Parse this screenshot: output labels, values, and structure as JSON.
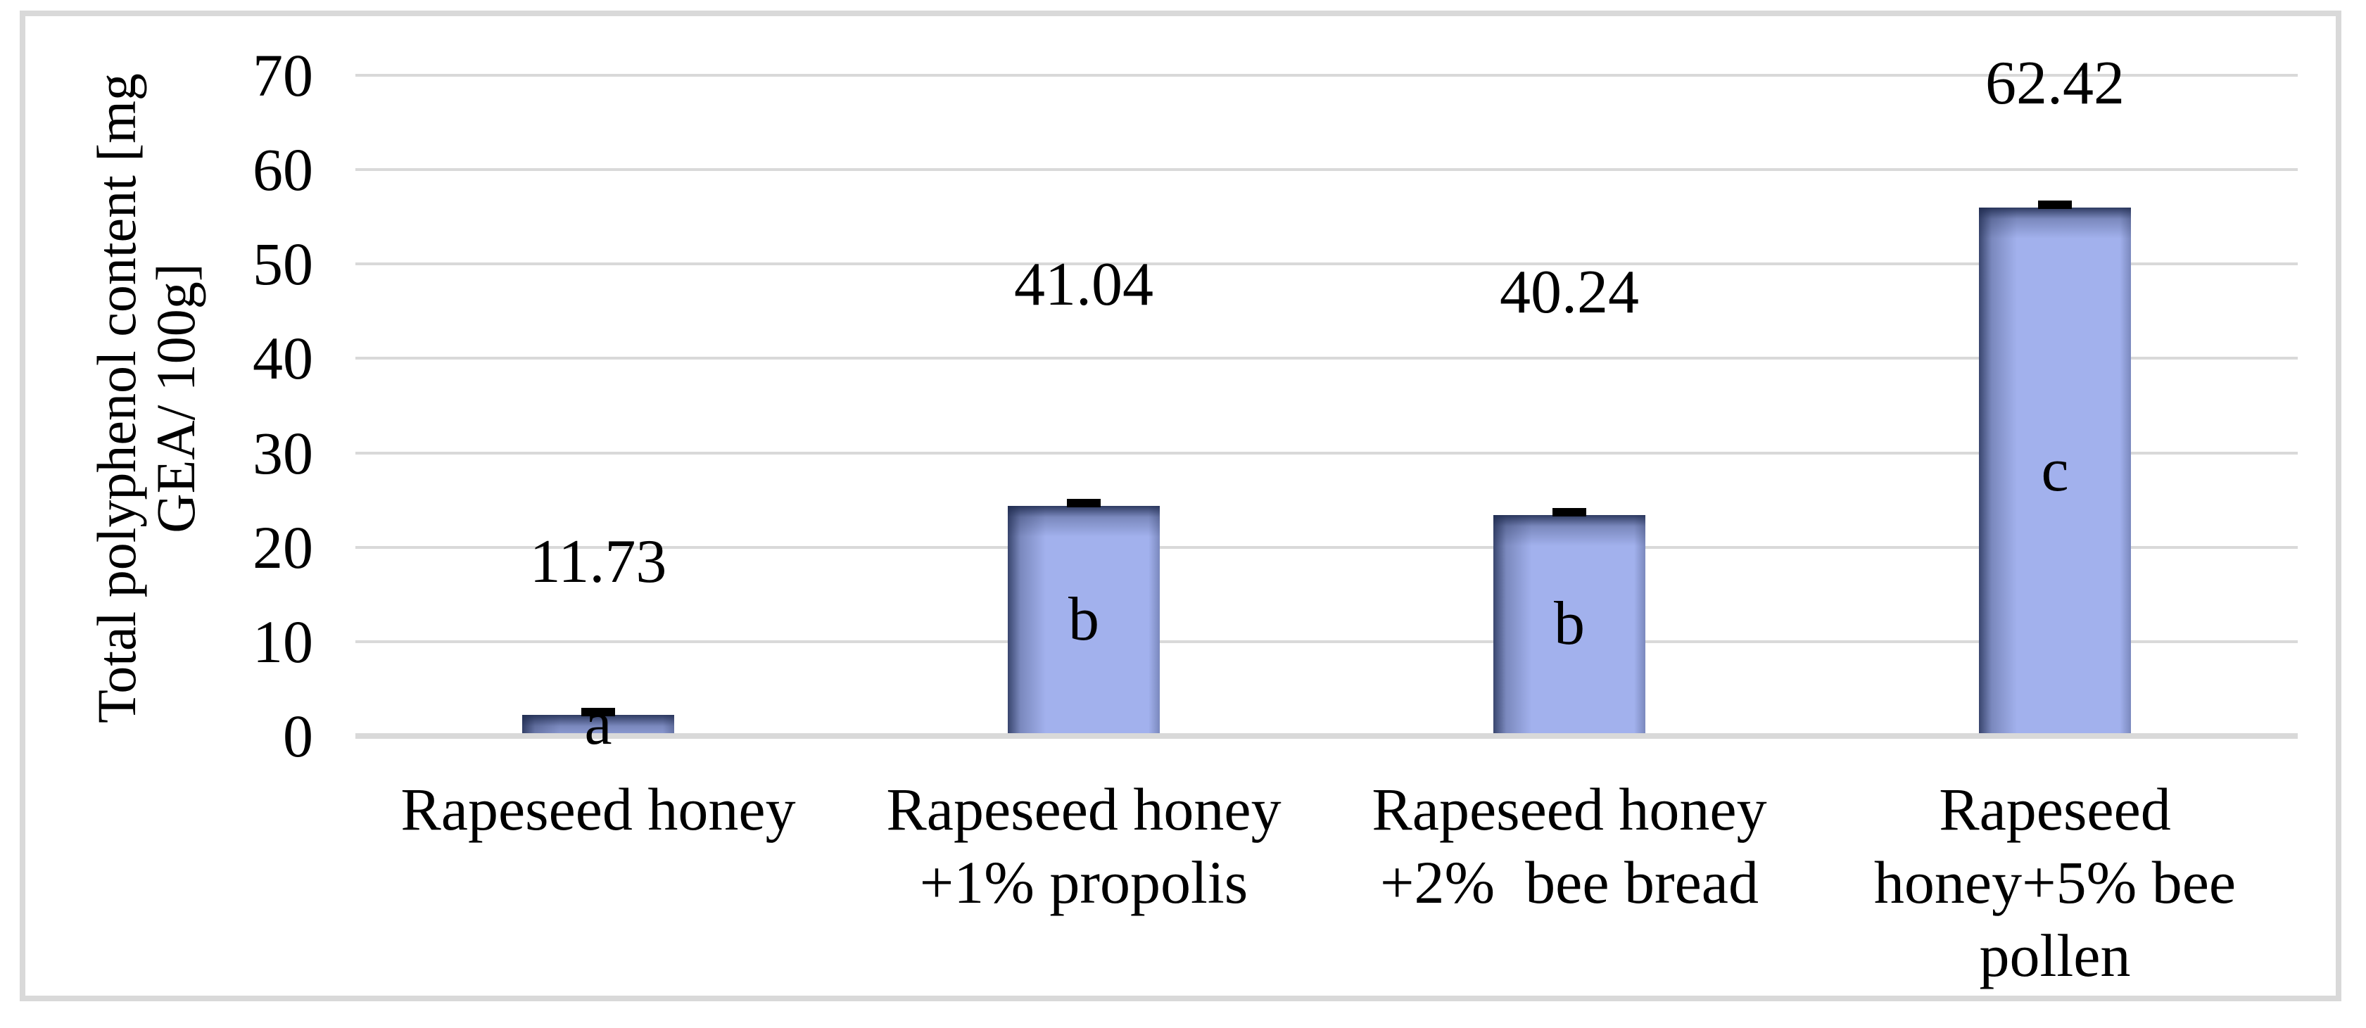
{
  "chart_data": {
    "type": "bar",
    "title": "",
    "ylabel": "Total polyphenol content [mg GEA/ 100g]",
    "ylabel_lines": [
      "Total polyphenol content [mg",
      "GEA/ 100g]"
    ],
    "yticks": [
      "70",
      "60",
      "50",
      "40",
      "30",
      "20",
      "10",
      "0"
    ],
    "ylim": [
      0,
      70
    ],
    "grid": "horizontal",
    "legend": "none",
    "categories": [
      "Rapeseed honey",
      "Rapeseed honey\n+1% propolis",
      "Rapeseed honey\n+2%  bee bread",
      "Rapeseed\nhoney+5% bee\npollen"
    ],
    "values": [
      11.73,
      41.04,
      40.24,
      62.42
    ],
    "value_labels": [
      "11.73",
      "41.04",
      "40.24",
      "62.42"
    ],
    "sig_letters": [
      "a",
      "b",
      "b",
      "c"
    ],
    "error_caps": true,
    "colors": {
      "bar_fill": "#a2b1ed",
      "bar_shade": "#1e2a4e",
      "gridline": "#d9d9d9",
      "frame_border": "#d9d9d9",
      "error_bar": "#000000",
      "text": "#000000",
      "background": "#ffffff"
    }
  }
}
